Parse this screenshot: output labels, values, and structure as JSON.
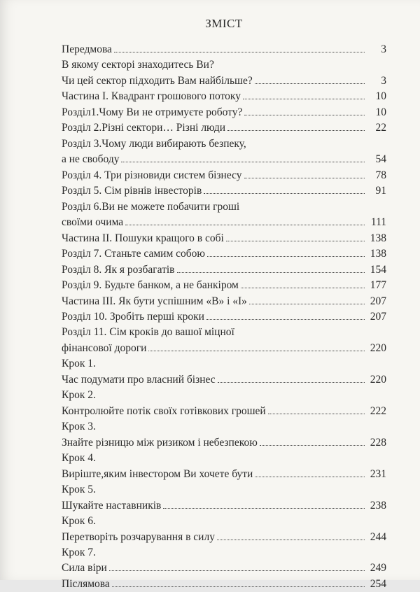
{
  "title": "ЗМІСТ",
  "entries": [
    {
      "label": "Передмова",
      "page": "3"
    },
    {
      "label": "В якому секторі знаходитесь Ви?",
      "page": ""
    },
    {
      "label": "Чи цей сектор підходить Вам найбільше?",
      "page": "3"
    },
    {
      "label": "Частина І. Квадрант грошового потоку",
      "page": "10"
    },
    {
      "label": "Розділ1.Чому Ви не отримуєте роботу?",
      "page": "10"
    },
    {
      "label": "Розділ 2.Різні сектори… Різні люди",
      "page": "22"
    },
    {
      "label": "Розділ 3.Чому люди вибирають безпеку,",
      "page": ""
    },
    {
      "label": "а не свободу",
      "page": "54"
    },
    {
      "label": "Розділ 4. Три різновиди систем бізнесу",
      "page": "78"
    },
    {
      "label": "Розділ 5. Сім рівнів інвесторів",
      "page": "91"
    },
    {
      "label": "Розділ 6.Ви не можете побачити гроші",
      "page": ""
    },
    {
      "label": "своїми очима",
      "page": "111"
    },
    {
      "label": "Частина ІІ. Пошуки кращого в собі",
      "page": "138"
    },
    {
      "label": "Розділ 7. Станьте самим собою",
      "page": "138"
    },
    {
      "label": "Розділ 8. Як я розбагатів",
      "page": "154"
    },
    {
      "label": "Розділ 9. Будьте банком, а не банкіром",
      "page": "177"
    },
    {
      "label": "Частина ІІІ. Як бути успішним «В» і «І»",
      "page": "207"
    },
    {
      "label": "Розділ 10. Зробіть перші кроки",
      "page": "207"
    },
    {
      "label": "Розділ 11. Сім кроків до вашої міцної",
      "page": ""
    },
    {
      "label": "фінансової дороги",
      "page": "220"
    },
    {
      "label": "Крок 1.",
      "page": ""
    },
    {
      "label": "Час подумати про власний бізнес",
      "page": "220"
    },
    {
      "label": "Крок 2.",
      "page": ""
    },
    {
      "label": "Контролюйте потік своїх готівкових грошей",
      "page": "222"
    },
    {
      "label": "Крок 3.",
      "page": ""
    },
    {
      "label": "Знайте різницю між ризиком і небезпекою",
      "page": "228"
    },
    {
      "label": "Крок 4.",
      "page": ""
    },
    {
      "label": "Виріште,яким інвестором Ви хочете бути",
      "page": "231"
    },
    {
      "label": "Крок 5.",
      "page": ""
    },
    {
      "label": "Шукайте наставників",
      "page": "238"
    },
    {
      "label": "Крок 6.",
      "page": ""
    },
    {
      "label": "Перетворіть розчарування в силу",
      "page": "244"
    },
    {
      "label": "Крок 7.",
      "page": ""
    },
    {
      "label": "Сила віри",
      "page": "249"
    },
    {
      "label": "Післямова",
      "page": "254"
    }
  ]
}
